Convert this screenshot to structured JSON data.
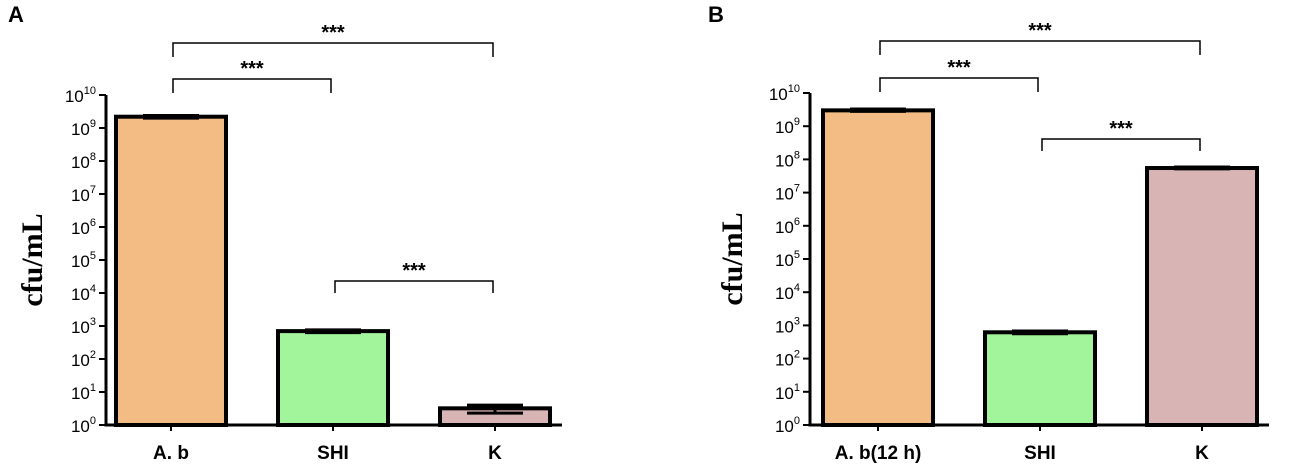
{
  "chart_data": [
    {
      "type": "bar",
      "panel_label": "A",
      "ylabel": "cfu/mL",
      "yscale": "log",
      "ylim": [
        1,
        10000000000
      ],
      "yticks": [
        "10^0",
        "10^1",
        "10^2",
        "10^3",
        "10^4",
        "10^5",
        "10^6",
        "10^7",
        "10^8",
        "10^9",
        "10^10"
      ],
      "categories": [
        "A. b",
        "SHI",
        "K"
      ],
      "values": [
        2200000000,
        700,
        3.2
      ],
      "error_low": [
        2000000000,
        630,
        2.3
      ],
      "error_high": [
        2400000000,
        760,
        4.0
      ],
      "colors": [
        "#f2bc84",
        "#a3f59b",
        "#d9b4b5"
      ],
      "significance": [
        {
          "from": 0,
          "to": 1,
          "label": "***"
        },
        {
          "from": 0,
          "to": 2,
          "label": "***"
        },
        {
          "from": 1,
          "to": 2,
          "label": "***"
        }
      ]
    },
    {
      "type": "bar",
      "panel_label": "B",
      "ylabel": "cfu/mL",
      "yscale": "log",
      "ylim": [
        1,
        10000000000
      ],
      "yticks": [
        "10^0",
        "10^1",
        "10^2",
        "10^3",
        "10^4",
        "10^5",
        "10^6",
        "10^7",
        "10^8",
        "10^9",
        "10^10"
      ],
      "categories": [
        "A. b(12 h)",
        "SHI",
        "K"
      ],
      "values": [
        3000000000,
        620,
        55000000
      ],
      "error_low": [
        2800000000,
        560,
        52000000
      ],
      "error_high": [
        3300000000,
        680,
        59000000
      ],
      "colors": [
        "#f2bc84",
        "#a3f59b",
        "#d9b4b5"
      ],
      "significance": [
        {
          "from": 0,
          "to": 1,
          "label": "***"
        },
        {
          "from": 0,
          "to": 2,
          "label": "***"
        },
        {
          "from": 1,
          "to": 2,
          "label": "***"
        }
      ]
    }
  ]
}
